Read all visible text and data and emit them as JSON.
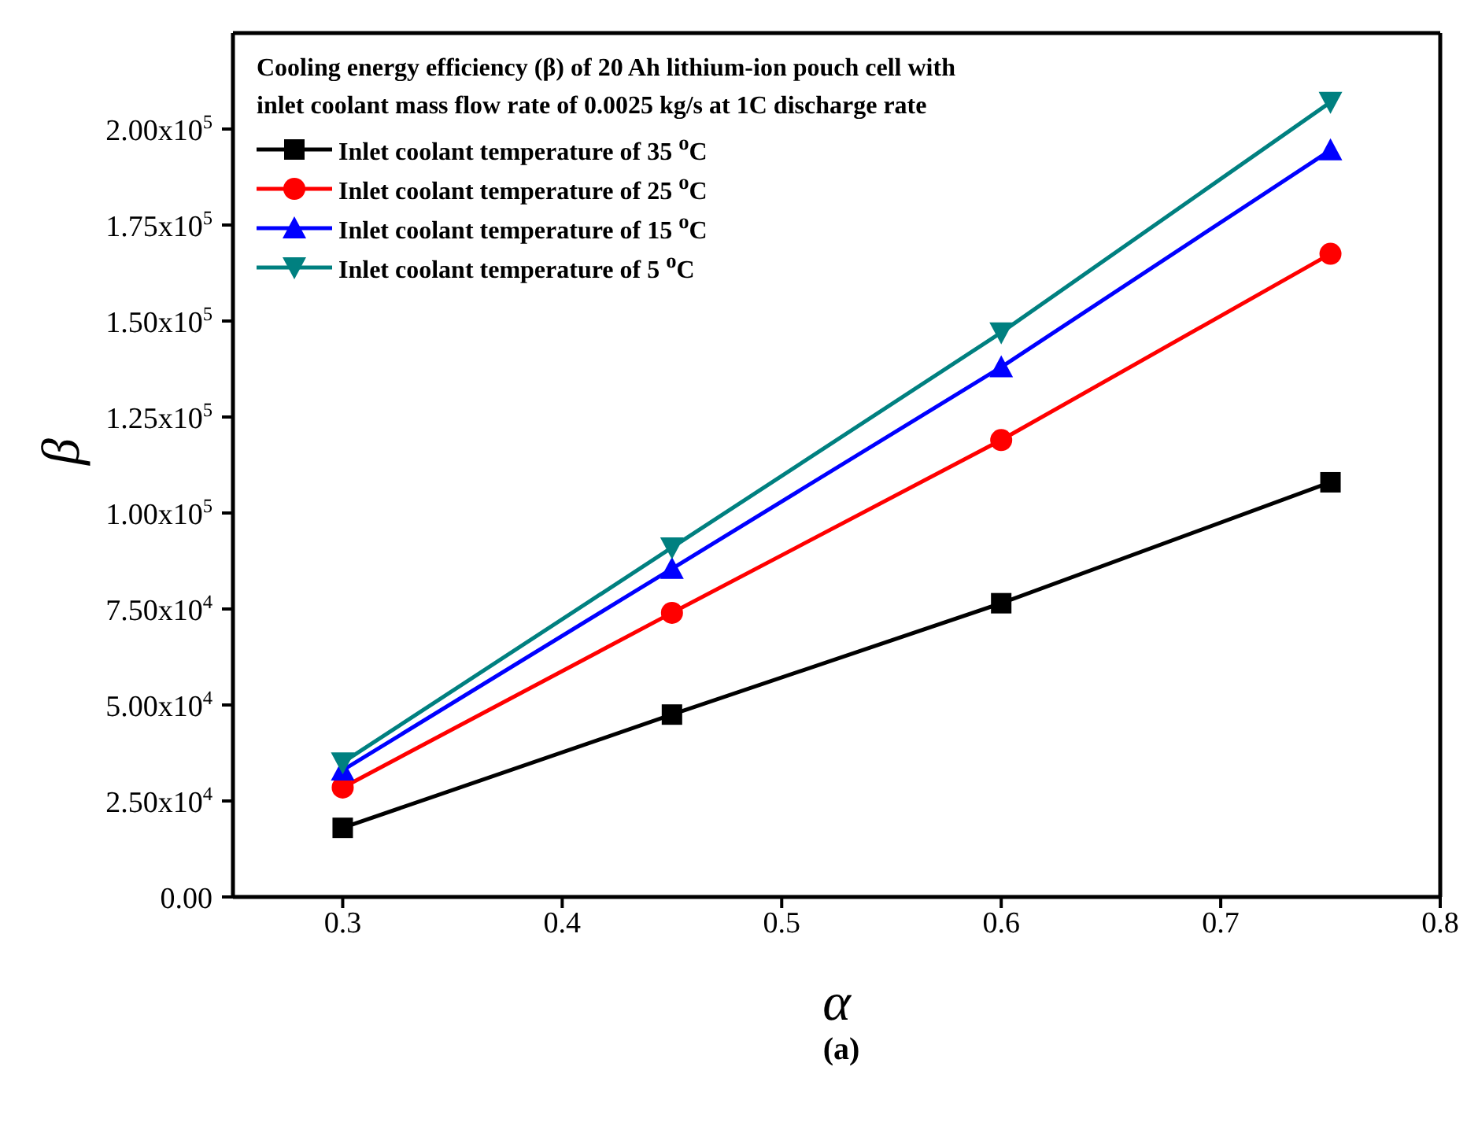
{
  "chart_data": {
    "type": "line",
    "xlabel": "α",
    "ylabel": "β",
    "legend_title": "Cooling energy efficiency (β) of 20 Ah lithium-ion pouch cell with inlet coolant mass flow rate of 0.0025 kg/s at 1C discharge rate",
    "legend": "top left",
    "annotations": [
      "(a)"
    ],
    "x": [
      0.3,
      0.45,
      0.6,
      0.75
    ],
    "xlim": [
      0.25,
      0.8
    ],
    "xticks": [
      0.3,
      0.4,
      0.5,
      0.6,
      0.7,
      0.8
    ],
    "ylim": [
      0,
      225000
    ],
    "yticks": [
      {
        "value": 0,
        "label": "0.00"
      },
      {
        "value": 25000,
        "label": "2.50x10$^{4}$"
      },
      {
        "value": 50000,
        "label": "5.00x10$^{4}$"
      },
      {
        "value": 75000,
        "label": "7.50x10$^{4}$"
      },
      {
        "value": 100000,
        "label": "1.00x10$^{5}$"
      },
      {
        "value": 125000,
        "label": "1.25x10$^{5}$"
      },
      {
        "value": 150000,
        "label": "1.50x10$^{5}$"
      },
      {
        "value": 175000,
        "label": "1.75x10$^{5}$"
      },
      {
        "value": 200000,
        "label": "2.00x10$^{5}$"
      }
    ],
    "grid": false,
    "series": [
      {
        "name": "Inlet coolant temperature of 35 $^{o}$C",
        "color": "#000000",
        "marker": "square",
        "values": [
          18000,
          47500,
          76500,
          108000
        ]
      },
      {
        "name": "Inlet coolant temperature of 25 $^{o}$C",
        "color": "#ff0000",
        "marker": "circle",
        "values": [
          28500,
          74000,
          119000,
          167500
        ]
      },
      {
        "name": "Inlet coolant temperature of 15 $^{o}$C",
        "color": "#0000ff",
        "marker": "triangle",
        "values": [
          33000,
          85500,
          138000,
          194500
        ]
      },
      {
        "name": "Inlet coolant temperature of 5 $^{o}$C",
        "color": "#008080",
        "marker": "triangle-down",
        "values": [
          35000,
          91000,
          147000,
          207000
        ]
      }
    ]
  }
}
